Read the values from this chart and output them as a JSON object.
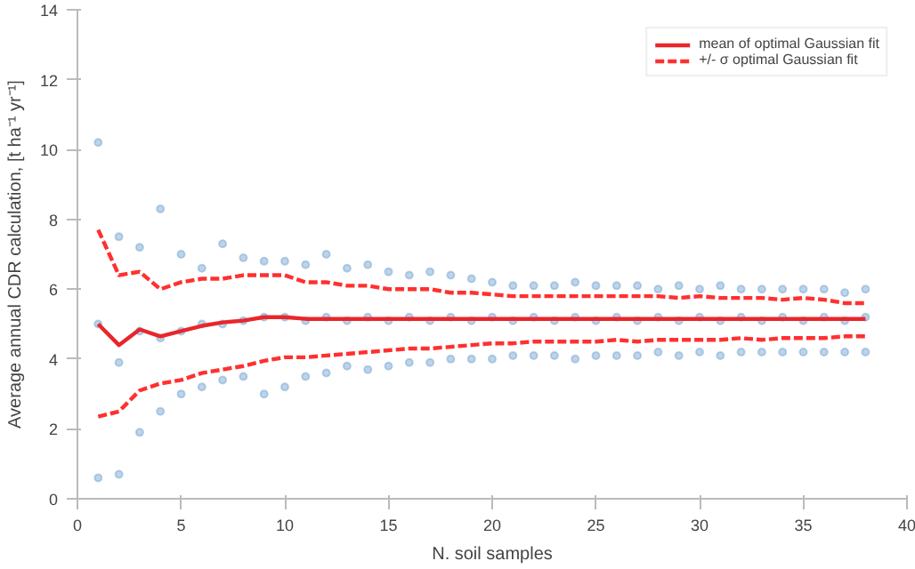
{
  "chart_data": {
    "type": "line",
    "xlabel": "N. soil samples",
    "ylabel": "Average annual CDR calculation, [t ha⁻¹ yr⁻¹]",
    "xlim": [
      0,
      40
    ],
    "xticks": [
      0,
      5,
      10,
      15,
      20,
      25,
      30,
      35,
      40
    ],
    "ylim": [
      0,
      14
    ],
    "yticks": [
      0,
      2,
      4,
      6,
      8,
      10,
      12,
      14
    ],
    "grid": false,
    "legend": "top right",
    "series": [
      {
        "type": "scatter",
        "color": "#6f9fd0",
        "marker": "circle",
        "x": [
          1,
          1,
          1,
          2,
          2,
          2,
          3,
          3,
          3,
          4,
          4,
          4,
          5,
          5,
          5,
          6,
          6,
          6,
          7,
          7,
          7,
          8,
          8,
          8,
          9,
          9,
          9,
          10,
          10,
          10,
          11,
          11,
          11,
          12,
          12,
          12,
          13,
          13,
          13,
          14,
          14,
          14,
          15,
          15,
          15,
          16,
          16,
          16,
          17,
          17,
          17,
          18,
          18,
          18,
          19,
          19,
          19,
          20,
          20,
          20,
          21,
          21,
          21,
          22,
          22,
          22,
          23,
          23,
          23,
          24,
          24,
          24,
          25,
          25,
          25,
          26,
          26,
          26,
          27,
          27,
          27,
          28,
          28,
          28,
          29,
          29,
          29,
          30,
          30,
          30,
          31,
          31,
          31,
          32,
          32,
          32,
          33,
          33,
          33,
          34,
          34,
          34,
          35,
          35,
          35,
          36,
          36,
          36,
          37,
          37,
          37,
          38,
          38,
          38
        ],
        "values": [
          0.6,
          5.0,
          10.2,
          0.7,
          3.9,
          7.5,
          1.9,
          4.8,
          7.2,
          2.5,
          4.6,
          8.3,
          3.0,
          4.8,
          7.0,
          3.2,
          5.0,
          6.6,
          3.4,
          5.0,
          7.3,
          3.5,
          5.1,
          6.9,
          3.0,
          5.2,
          6.8,
          3.2,
          5.2,
          6.8,
          3.5,
          5.1,
          6.7,
          3.6,
          5.2,
          7.0,
          3.8,
          5.1,
          6.6,
          3.7,
          5.2,
          6.7,
          3.8,
          5.1,
          6.5,
          3.9,
          5.2,
          6.4,
          3.9,
          5.1,
          6.5,
          4.0,
          5.2,
          6.4,
          4.0,
          5.1,
          6.3,
          4.0,
          5.2,
          6.2,
          4.1,
          5.1,
          6.1,
          4.1,
          5.2,
          6.1,
          4.1,
          5.1,
          6.1,
          4.0,
          5.2,
          6.2,
          4.1,
          5.1,
          6.1,
          4.1,
          5.2,
          6.1,
          4.1,
          5.1,
          6.1,
          4.2,
          5.2,
          6.0,
          4.1,
          5.1,
          6.1,
          4.2,
          5.2,
          6.0,
          4.1,
          5.1,
          6.1,
          4.2,
          5.2,
          6.0,
          4.2,
          5.1,
          6.0,
          4.2,
          5.2,
          6.0,
          4.2,
          5.1,
          6.0,
          4.2,
          5.2,
          6.0,
          4.2,
          5.1,
          5.9,
          4.2,
          5.2,
          6.0
        ]
      },
      {
        "name": "mean of optimal Gaussian fit",
        "line_style": "solid",
        "color": "#e8262b",
        "x": [
          1,
          2,
          3,
          4,
          5,
          6,
          7,
          8,
          9,
          10,
          11,
          12,
          13,
          14,
          15,
          16,
          17,
          18,
          19,
          20,
          21,
          22,
          23,
          24,
          25,
          26,
          27,
          28,
          29,
          30,
          31,
          32,
          33,
          34,
          35,
          36,
          37,
          38
        ],
        "values": [
          5.0,
          4.4,
          4.85,
          4.65,
          4.8,
          4.95,
          5.05,
          5.1,
          5.2,
          5.2,
          5.15,
          5.15,
          5.15,
          5.15,
          5.15,
          5.15,
          5.15,
          5.15,
          5.15,
          5.15,
          5.15,
          5.15,
          5.15,
          5.15,
          5.15,
          5.15,
          5.15,
          5.15,
          5.15,
          5.15,
          5.15,
          5.15,
          5.15,
          5.15,
          5.15,
          5.15,
          5.15,
          5.15
        ]
      },
      {
        "name": "+/- σ optimal Gaussian fit",
        "line_style": "dashed",
        "color": "#ff3030",
        "x": [
          1,
          2,
          3,
          4,
          5,
          6,
          7,
          8,
          9,
          10,
          11,
          12,
          13,
          14,
          15,
          16,
          17,
          18,
          19,
          20,
          21,
          22,
          23,
          24,
          25,
          26,
          27,
          28,
          29,
          30,
          31,
          32,
          33,
          34,
          35,
          36,
          37,
          38
        ],
        "values": [
          7.7,
          6.4,
          6.5,
          6.0,
          6.2,
          6.3,
          6.3,
          6.4,
          6.4,
          6.4,
          6.2,
          6.2,
          6.1,
          6.1,
          6.0,
          6.0,
          6.0,
          5.9,
          5.9,
          5.85,
          5.8,
          5.8,
          5.8,
          5.8,
          5.8,
          5.8,
          5.8,
          5.8,
          5.75,
          5.8,
          5.75,
          5.75,
          5.75,
          5.7,
          5.75,
          5.7,
          5.6,
          5.6
        ]
      },
      {
        "line_style": "dashed",
        "color": "#ff3030",
        "x": [
          1,
          2,
          3,
          4,
          5,
          6,
          7,
          8,
          9,
          10,
          11,
          12,
          13,
          14,
          15,
          16,
          17,
          18,
          19,
          20,
          21,
          22,
          23,
          24,
          25,
          26,
          27,
          28,
          29,
          30,
          31,
          32,
          33,
          34,
          35,
          36,
          37,
          38
        ],
        "values": [
          2.35,
          2.5,
          3.1,
          3.3,
          3.4,
          3.6,
          3.7,
          3.8,
          3.95,
          4.05,
          4.05,
          4.1,
          4.15,
          4.2,
          4.25,
          4.3,
          4.3,
          4.35,
          4.4,
          4.45,
          4.45,
          4.5,
          4.5,
          4.5,
          4.5,
          4.55,
          4.5,
          4.55,
          4.55,
          4.55,
          4.55,
          4.6,
          4.55,
          4.6,
          4.6,
          4.6,
          4.65,
          4.65
        ]
      }
    ]
  }
}
